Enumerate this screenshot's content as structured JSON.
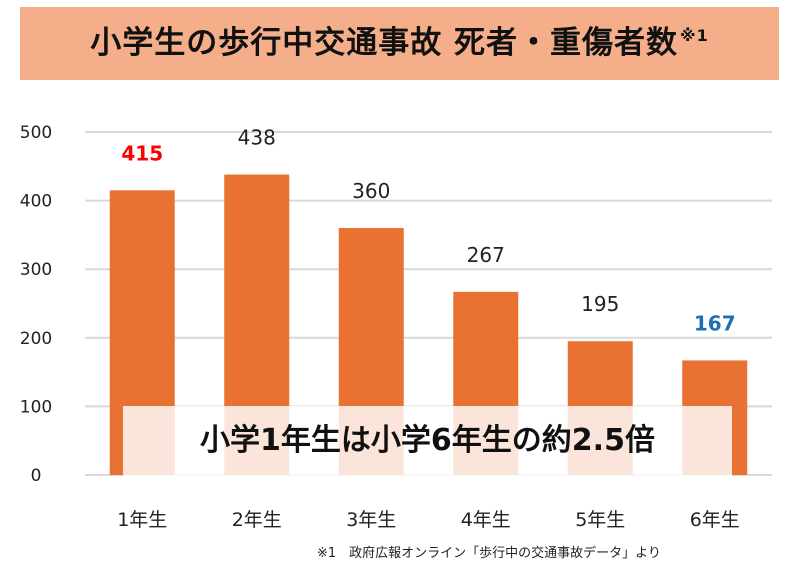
{
  "title": {
    "text": "小学生の歩行中交通事故 死者・重傷者数",
    "mark": "※1"
  },
  "banner": {
    "text": "小学1年生は小学6年生の約2.5倍"
  },
  "footnote": {
    "text": "※1　政府広報オンライン「歩行中の交通事故データ」より"
  },
  "colors": {
    "bar": "#E97132",
    "label_default": "#222222",
    "label_first": "#FF0000",
    "label_last": "#1F6FB4",
    "title_bg": "#F4AE8A",
    "grid": "#D9D9D9"
  },
  "chart_data": {
    "type": "bar",
    "title": "小学生の歩行中交通事故 死者・重傷者数",
    "xlabel": "",
    "ylabel": "",
    "categories": [
      "1年生",
      "2年生",
      "3年生",
      "4年生",
      "5年生",
      "6年生"
    ],
    "values": [
      415,
      438,
      360,
      267,
      195,
      167
    ],
    "ylim": [
      0,
      500
    ],
    "yticks": [
      0,
      100,
      200,
      300,
      400,
      500
    ],
    "grid": true,
    "legend": "none"
  }
}
